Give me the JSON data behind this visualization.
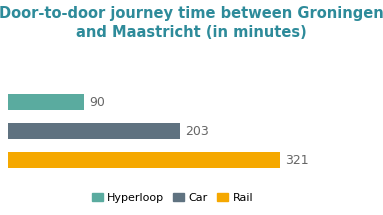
{
  "title": "Door-to-door journey time between Groningen\nand Maastricht (in minutes)",
  "categories": [
    "Hyperloop",
    "Car",
    "Rail"
  ],
  "values": [
    90,
    203,
    321
  ],
  "bar_colors": [
    "#5aab9f",
    "#5f7280",
    "#f5a800"
  ],
  "label_color": "#666666",
  "title_color": "#2e8b9a",
  "xlim": [
    0,
    370
  ],
  "bar_height": 0.55,
  "legend_labels": [
    "Hyperloop",
    "Car",
    "Rail"
  ],
  "background_color": "#ffffff",
  "title_fontsize": 10.5,
  "label_fontsize": 9,
  "legend_fontsize": 8
}
